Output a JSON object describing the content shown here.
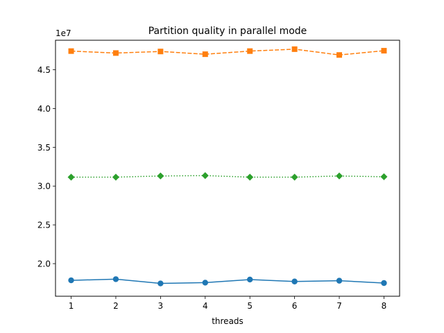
{
  "chart_data": {
    "type": "line",
    "title": "Partition quality in parallel mode",
    "xlabel": "threads",
    "ylabel": "",
    "y_offset_label": "1e7",
    "x": [
      1,
      2,
      3,
      4,
      5,
      6,
      7,
      8
    ],
    "xlim": [
      0.65,
      8.35
    ],
    "ylim": [
      1.58,
      4.88
    ],
    "x_ticks": [
      1,
      2,
      3,
      4,
      5,
      6,
      7,
      8
    ],
    "x_tick_labels": [
      "1",
      "2",
      "3",
      "4",
      "5",
      "6",
      "7",
      "8"
    ],
    "y_ticks": [
      2.0,
      2.5,
      3.0,
      3.5,
      4.0,
      4.5
    ],
    "y_tick_labels": [
      "2.0",
      "2.5",
      "3.0",
      "3.5",
      "4.0",
      "4.5"
    ],
    "grid": false,
    "legend": "none",
    "series": [
      {
        "values": [
          4.74,
          4.715,
          4.735,
          4.7,
          4.74,
          4.765,
          4.69,
          4.745
        ],
        "color": "#ff7f0e",
        "line_style": "dashed",
        "marker": "square"
      },
      {
        "values": [
          3.115,
          3.115,
          3.13,
          3.135,
          3.115,
          3.115,
          3.13,
          3.12
        ],
        "color": "#2ca02c",
        "line_style": "dotted",
        "marker": "diamond"
      },
      {
        "values": [
          1.785,
          1.8,
          1.745,
          1.755,
          1.795,
          1.77,
          1.78,
          1.75
        ],
        "color": "#1f77b4",
        "line_style": "solid",
        "marker": "circle"
      }
    ]
  }
}
